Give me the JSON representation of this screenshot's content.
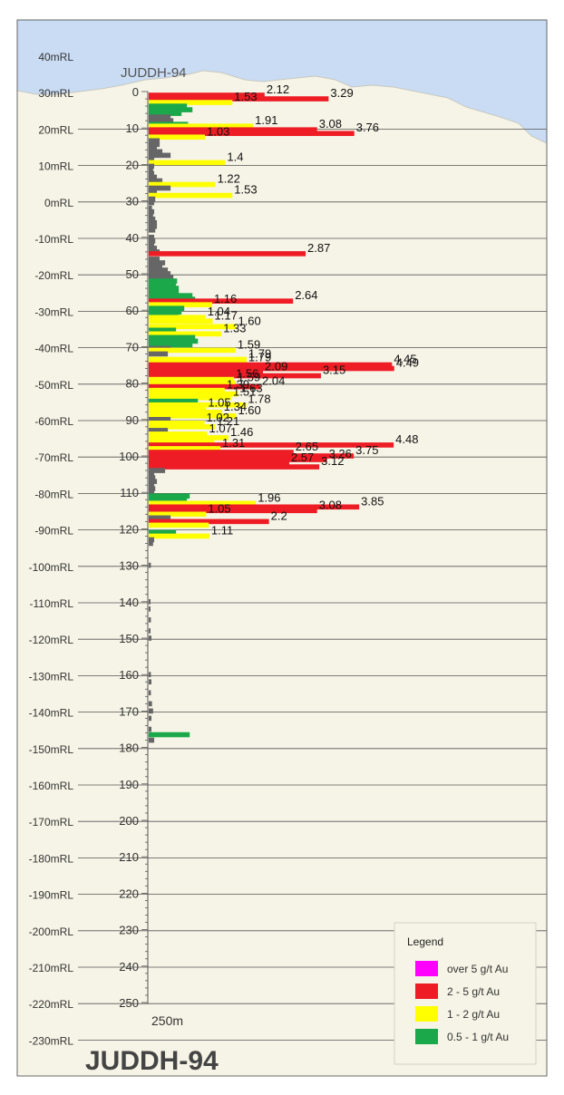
{
  "chart_data": {
    "type": "bar",
    "title": "JUDDH-94",
    "hole_label": "JUDDH-94",
    "scale_label": "250m",
    "depth_axis": {
      "min": 0,
      "max": 250,
      "unit": "m",
      "ticks": [
        0,
        10,
        20,
        30,
        40,
        50,
        60,
        70,
        80,
        90,
        100,
        110,
        120,
        130,
        140,
        150,
        160,
        170,
        180,
        190,
        200,
        210,
        220,
        230,
        240,
        250
      ]
    },
    "rl_axis": {
      "labels": [
        "40mRL",
        "30mRL",
        "20mRL",
        "10mRL",
        "0mRL",
        "-10mRL",
        "-20mRL",
        "-30mRL",
        "-40mRL",
        "-50mRL",
        "-60mRL",
        "-70mRL",
        "-80mRL",
        "-90mRL",
        "-100mRL",
        "-110mRL",
        "-120mRL",
        "-130mRL",
        "-140mRL",
        "-150mRL",
        "-160mRL",
        "-170mRL",
        "-180mRL",
        "-190mRL",
        "-200mRL",
        "-210mRL",
        "-220mRL",
        "-230mRL"
      ]
    },
    "grade_bins": [
      {
        "label": "over 5 g/t Au",
        "color": "#ff00ff"
      },
      {
        "label": "2 - 5 g/t Au",
        "color": "#ee1c25"
      },
      {
        "label": "1 - 2 g/t Au",
        "color": "#ffff00"
      },
      {
        "label": "0.5 - 1 g/t Au",
        "color": "#1aa84a"
      }
    ],
    "low_grade_color": "#666666",
    "legend": {
      "title": "Legend",
      "placement": "bottom-right"
    },
    "intervals": [
      {
        "d": 1,
        "v": 2.12,
        "label": "2.12"
      },
      {
        "d": 2,
        "v": 3.29,
        "label": "3.29"
      },
      {
        "d": 3,
        "v": 1.53,
        "label": "1.53"
      },
      {
        "d": 4,
        "v": 0.7
      },
      {
        "d": 5,
        "v": 0.8
      },
      {
        "d": 6,
        "v": 0.6
      },
      {
        "d": 7,
        "v": 0.4
      },
      {
        "d": 8,
        "v": 0.45
      },
      {
        "d": 9,
        "v": 0.72
      },
      {
        "d": 9.5,
        "v": 1.91,
        "label": "1.91"
      },
      {
        "d": 10.5,
        "v": 3.08,
        "label": "3.08"
      },
      {
        "d": 11.5,
        "v": 3.76,
        "label": "3.76"
      },
      {
        "d": 12.5,
        "v": 1.03,
        "label": "1.03"
      },
      {
        "d": 13.5,
        "v": 0.2
      },
      {
        "d": 14.5,
        "v": 0.2
      },
      {
        "d": 15.5,
        "v": 0.15
      },
      {
        "d": 16.5,
        "v": 0.25
      },
      {
        "d": 17.5,
        "v": 0.4
      },
      {
        "d": 18.5,
        "v": 0.1
      },
      {
        "d": 19.5,
        "v": 1.4,
        "label": "1.4"
      },
      {
        "d": 20.5,
        "v": 0.1
      },
      {
        "d": 21.5,
        "v": 0.08
      },
      {
        "d": 22.5,
        "v": 0.1
      },
      {
        "d": 23.5,
        "v": 0.15
      },
      {
        "d": 24.5,
        "v": 0.25
      },
      {
        "d": 25.5,
        "v": 1.22,
        "label": "1.22"
      },
      {
        "d": 26.5,
        "v": 0.4
      },
      {
        "d": 27.5,
        "v": 0.15
      },
      {
        "d": 28.5,
        "v": 1.53,
        "label": "1.53"
      },
      {
        "d": 29.5,
        "v": 0.12
      },
      {
        "d": 30.5,
        "v": 0.1
      },
      {
        "d": 32,
        "v": 0.06
      },
      {
        "d": 33,
        "v": 0.1
      },
      {
        "d": 34,
        "v": 0.08
      },
      {
        "d": 35,
        "v": 0.12
      },
      {
        "d": 36,
        "v": 0.15
      },
      {
        "d": 37,
        "v": 0.15
      },
      {
        "d": 38,
        "v": 0.12
      },
      {
        "d": 40,
        "v": 0.1
      },
      {
        "d": 41,
        "v": 0.12
      },
      {
        "d": 42,
        "v": 0.1
      },
      {
        "d": 43,
        "v": 0.15
      },
      {
        "d": 44,
        "v": 0.2
      },
      {
        "d": 44.5,
        "v": 2.87,
        "label": "2.87"
      },
      {
        "d": 46,
        "v": 0.2
      },
      {
        "d": 47,
        "v": 0.3
      },
      {
        "d": 48,
        "v": 0.25
      },
      {
        "d": 49,
        "v": 0.35
      },
      {
        "d": 50,
        "v": 0.4
      },
      {
        "d": 51,
        "v": 0.45
      },
      {
        "d": 52,
        "v": 0.52
      },
      {
        "d": 53,
        "v": 0.5
      },
      {
        "d": 54,
        "v": 0.55
      },
      {
        "d": 55,
        "v": 0.55
      },
      {
        "d": 56,
        "v": 0.8
      },
      {
        "d": 57,
        "v": 0.85
      },
      {
        "d": 57.5,
        "v": 2.64,
        "label": "2.64"
      },
      {
        "d": 58.5,
        "v": 1.16,
        "label": "1.16"
      },
      {
        "d": 59.5,
        "v": 0.65
      },
      {
        "d": 60.5,
        "v": 0.6
      },
      {
        "d": 61.5,
        "v": 0.55
      },
      {
        "d": 62,
        "v": 1.04,
        "label": "1.04"
      },
      {
        "d": 63,
        "v": 1.17,
        "label": "1.17"
      },
      {
        "d": 64.5,
        "v": 1.6,
        "label": "1.60"
      },
      {
        "d": 65.5,
        "v": 0.5
      },
      {
        "d": 66.5,
        "v": 1.33,
        "label": "1.33"
      },
      {
        "d": 67.5,
        "v": 0.85
      },
      {
        "d": 68.5,
        "v": 0.9
      },
      {
        "d": 69.5,
        "v": 0.8
      },
      {
        "d": 70.5,
        "v": 0.4
      },
      {
        "d": 71,
        "v": 1.59,
        "label": "1.59"
      },
      {
        "d": 72,
        "v": 0.35
      },
      {
        "d": 73.5,
        "v": 1.79,
        "label": "1.79"
      },
      {
        "d": 74.5,
        "v": 1.79,
        "label": "1.79"
      },
      {
        "d": 75,
        "v": 4.45,
        "label": "4.45"
      },
      {
        "d": 76,
        "v": 4.49,
        "label": "4.49"
      },
      {
        "d": 77,
        "v": 2.09,
        "label": "2.09"
      },
      {
        "d": 78,
        "v": 3.15,
        "label": "3.15"
      },
      {
        "d": 79,
        "v": 1.56,
        "label": "1.56"
      },
      {
        "d": 80,
        "v": 1.59,
        "label": "1.59"
      },
      {
        "d": 81,
        "v": 2.04,
        "label": "2.04"
      },
      {
        "d": 82,
        "v": 1.39,
        "label": "1.39"
      },
      {
        "d": 83,
        "v": 1.63,
        "label": "1.63"
      },
      {
        "d": 84,
        "v": 1.51,
        "label": "1.51"
      },
      {
        "d": 85,
        "v": 0.9
      },
      {
        "d": 86,
        "v": 1.78,
        "label": "1.78"
      },
      {
        "d": 87,
        "v": 1.05,
        "label": "1.05"
      },
      {
        "d": 88,
        "v": 1.34,
        "label": "1.34"
      },
      {
        "d": 89,
        "v": 1.6,
        "label": "1.60"
      },
      {
        "d": 90,
        "v": 0.4
      },
      {
        "d": 91,
        "v": 1.02,
        "label": "1.02"
      },
      {
        "d": 92,
        "v": 1.21,
        "label": "1.21"
      },
      {
        "d": 93,
        "v": 0.35
      },
      {
        "d": 94,
        "v": 1.07,
        "label": "1.07"
      },
      {
        "d": 95,
        "v": 1.46,
        "label": "1.46"
      },
      {
        "d": 96,
        "v": 1.2
      },
      {
        "d": 97,
        "v": 4.48,
        "label": "4.48"
      },
      {
        "d": 98,
        "v": 1.31,
        "label": "1.31"
      },
      {
        "d": 99,
        "v": 2.65,
        "label": "2.65"
      },
      {
        "d": 100,
        "v": 3.75,
        "label": "3.75"
      },
      {
        "d": 101,
        "v": 3.26,
        "label": "3.26"
      },
      {
        "d": 102,
        "v": 2.57,
        "label": "2.57"
      },
      {
        "d": 103,
        "v": 3.12,
        "label": "3.12"
      },
      {
        "d": 104,
        "v": 0.3
      },
      {
        "d": 105,
        "v": 0.1
      },
      {
        "d": 106,
        "v": 0.12
      },
      {
        "d": 107,
        "v": 0.15
      },
      {
        "d": 108,
        "v": 0.1
      },
      {
        "d": 109,
        "v": 0.12
      },
      {
        "d": 110,
        "v": 0.1
      },
      {
        "d": 111,
        "v": 0.75
      },
      {
        "d": 112,
        "v": 0.7
      },
      {
        "d": 113,
        "v": 1.96,
        "label": "1.96"
      },
      {
        "d": 114,
        "v": 3.85,
        "label": "3.85"
      },
      {
        "d": 115,
        "v": 3.08,
        "label": "3.08"
      },
      {
        "d": 116,
        "v": 1.05,
        "label": "1.05"
      },
      {
        "d": 117,
        "v": 0.4
      },
      {
        "d": 118,
        "v": 2.2,
        "label": "2.2"
      },
      {
        "d": 119,
        "v": 1.1
      },
      {
        "d": 121,
        "v": 0.5
      },
      {
        "d": 122,
        "v": 1.11,
        "label": "1.11"
      },
      {
        "d": 123,
        "v": 0.1
      },
      {
        "d": 124,
        "v": 0.08
      },
      {
        "d": 130,
        "v": 0.04
      },
      {
        "d": 140,
        "v": 0.03
      },
      {
        "d": 142,
        "v": 0.03
      },
      {
        "d": 145,
        "v": 0.04
      },
      {
        "d": 148,
        "v": 0.03
      },
      {
        "d": 150,
        "v": 0.05
      },
      {
        "d": 160,
        "v": 0.04
      },
      {
        "d": 162,
        "v": 0.05
      },
      {
        "d": 165,
        "v": 0.04
      },
      {
        "d": 168,
        "v": 0.06
      },
      {
        "d": 170,
        "v": 0.08
      },
      {
        "d": 172,
        "v": 0.05
      },
      {
        "d": 175,
        "v": 0.05
      },
      {
        "d": 176.5,
        "v": 0.75
      },
      {
        "d": 178,
        "v": 0.1
      }
    ]
  }
}
